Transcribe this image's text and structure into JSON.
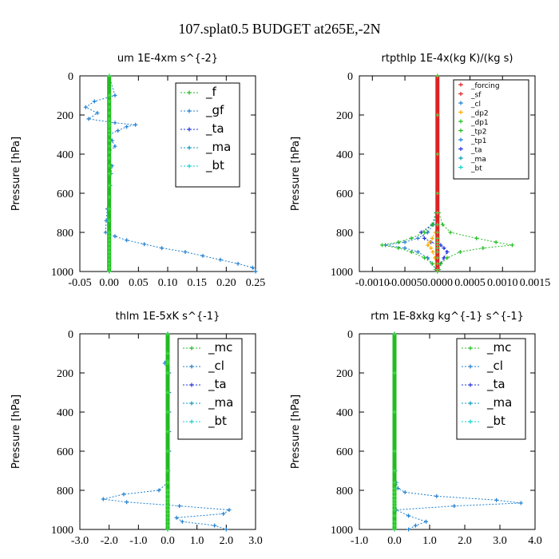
{
  "suptitle": "107.splat0.5  BUDGET at265E,-2N",
  "series_styles": {
    "_f": {
      "color": "#22bb22"
    },
    "_gf": {
      "color": "#1f7fd0"
    },
    "_ta": {
      "color": "#2233dd"
    },
    "_ma": {
      "color": "#1199bb"
    },
    "_bt": {
      "color": "#11d0d0"
    },
    "_forcing": {
      "color": "#dd2222"
    },
    "_sf": {
      "color": "#dd2222"
    },
    "_cl": {
      "color": "#1f7fd0"
    },
    "_dp2": {
      "color": "#ffaa00"
    },
    "_dp1": {
      "color": "#22bb22"
    },
    "_tp2": {
      "color": "#22bb22"
    },
    "_tp1": {
      "color": "#1f7fd0"
    },
    "_mc": {
      "color": "#22bb22"
    }
  },
  "chart_data": [
    {
      "type": "line",
      "title": "um   1E-4xm s^{-2}",
      "ylabel": "Pressure [hPa]",
      "xlim": [
        -0.05,
        0.25
      ],
      "ylim": [
        1000,
        0
      ],
      "xticks": [
        -0.05,
        0.0,
        0.05,
        0.1,
        0.15,
        0.2,
        0.25
      ],
      "xtick_labels": [
        "-0.05",
        "0.00",
        "0.05",
        "0.10",
        "0.15",
        "0.20",
        "0.25"
      ],
      "yticks": [
        0,
        200,
        400,
        600,
        800,
        1000
      ],
      "legend": "top-right",
      "legend_entries": [
        "_f",
        "_gf",
        "_ta",
        "_ma",
        "_bt"
      ],
      "pressure": [
        0,
        100,
        130,
        160,
        190,
        220,
        240,
        250,
        260,
        280,
        300,
        330,
        360,
        390,
        420,
        460,
        500,
        560,
        620,
        680,
        740,
        800,
        820,
        840,
        860,
        880,
        900,
        920,
        940,
        960,
        980,
        1000
      ],
      "series": [
        {
          "name": "_f",
          "values": [
            0,
            0,
            0,
            0,
            0,
            0,
            0,
            0,
            0,
            0,
            0,
            0,
            0,
            0,
            0,
            0,
            0,
            0,
            0,
            0,
            0,
            0,
            0,
            0,
            0,
            0,
            0,
            0,
            0,
            0,
            0,
            0
          ]
        },
        {
          "name": "_gf",
          "values": [
            0.0,
            0.01,
            -0.025,
            -0.04,
            -0.02,
            -0.035,
            0.01,
            0.045,
            0.03,
            0.015,
            0.0,
            0.005,
            0.01,
            0.0,
            0.0,
            0.005,
            0.003,
            0.002,
            0.0,
            -0.003,
            -0.005,
            -0.006,
            0.01,
            0.03,
            0.06,
            0.09,
            0.13,
            0.16,
            0.19,
            0.22,
            0.245,
            0.25
          ]
        },
        {
          "name": "_ta",
          "values": [
            0,
            0,
            0,
            0,
            0,
            0,
            0,
            0,
            0,
            0,
            0,
            0,
            0,
            0,
            0,
            0,
            0,
            0,
            0,
            0,
            0,
            0,
            0,
            0,
            0,
            0,
            0,
            0,
            0,
            0,
            0,
            0
          ]
        },
        {
          "name": "_ma",
          "values": [
            0,
            0,
            0,
            0,
            0,
            0,
            0,
            0,
            0,
            0,
            0,
            0,
            0,
            0,
            0,
            0,
            0,
            0,
            0,
            0,
            0,
            0,
            0,
            0,
            0,
            0,
            0,
            0,
            0,
            0,
            0,
            0
          ]
        },
        {
          "name": "_bt",
          "values": [
            0,
            0,
            0,
            0,
            0,
            0,
            0,
            0,
            0,
            0,
            0,
            0,
            0,
            0,
            0,
            0,
            0,
            0,
            0,
            0,
            0,
            0,
            0,
            0,
            0,
            0,
            0,
            0,
            0,
            0,
            0,
            0
          ]
        }
      ]
    },
    {
      "type": "line",
      "title": "rtpthlp   1E-4x(kg K)/(kg s)",
      "ylabel": "Pressure [hPa]",
      "xlim": [
        -0.0012,
        0.0015
      ],
      "ylim": [
        1000,
        0
      ],
      "xticks": [
        -0.001,
        -0.0005,
        0.0,
        0.0005,
        0.001,
        0.0015
      ],
      "xtick_labels": [
        "-0.0010",
        "-0.0005",
        "0.0000",
        "0.0005",
        "0.0010",
        "0.0015"
      ],
      "yticks": [
        0,
        200,
        400,
        600,
        800,
        1000
      ],
      "legend": "top-right",
      "legend_entries": [
        "_forcing",
        "_sf",
        "_cl",
        "_dp2",
        "_dp1",
        "_tp2",
        "_tp1",
        "_ta",
        "_ma",
        "_bt"
      ],
      "pressure": [
        0,
        200,
        400,
        600,
        700,
        760,
        800,
        830,
        850,
        865,
        880,
        900,
        930,
        960,
        990,
        1000
      ],
      "series": [
        {
          "name": "_forcing",
          "values": [
            0,
            0,
            0,
            0,
            0,
            0,
            0,
            0,
            0,
            0,
            0,
            0,
            0,
            0,
            0,
            0
          ]
        },
        {
          "name": "_sf",
          "values": [
            0,
            0,
            0,
            0,
            0,
            0,
            0,
            0,
            0,
            0,
            0,
            0,
            0,
            0,
            0,
            0
          ]
        },
        {
          "name": "_cl",
          "values": [
            0,
            0,
            0,
            0,
            0,
            0,
            0,
            0,
            0,
            0,
            0,
            0,
            0,
            0,
            0,
            0
          ]
        },
        {
          "name": "_dp2",
          "values": [
            0,
            0,
            0,
            0,
            0,
            0,
            -3e-05,
            -8e-05,
            -0.00012,
            -0.00015,
            -0.0001,
            -7e-05,
            -4e-05,
            -2e-05,
            -1e-05,
            0
          ]
        },
        {
          "name": "_dp1",
          "values": [
            0,
            0,
            0,
            0,
            2e-05,
            8e-05,
            0.0002,
            0.0006,
            0.0009,
            0.00115,
            0.0007,
            0.00035,
            0.00015,
            5e-05,
            2e-05,
            0
          ]
        },
        {
          "name": "_tp2",
          "values": [
            0,
            0,
            0,
            0,
            -2e-05,
            -8e-05,
            -0.0002,
            -0.0004,
            -0.0006,
            -0.00085,
            -0.0006,
            -0.0004,
            -0.0002,
            -8e-05,
            -2e-05,
            0
          ]
        },
        {
          "name": "_tp1",
          "values": [
            0,
            0,
            0,
            0,
            -2e-05,
            -6e-05,
            -0.00015,
            -0.0003,
            -0.0005,
            -0.0008,
            -0.0005,
            -0.0003,
            -0.00015,
            -8e-05,
            -3e-05,
            0
          ]
        },
        {
          "name": "_ta",
          "values": [
            0,
            0,
            0,
            0,
            -2e-05,
            -8e-05,
            -0.00025,
            -0.0002,
            -0.0001,
            5e-05,
            0.0001,
            0.00015,
            0.0001,
            5e-05,
            2e-05,
            0
          ]
        },
        {
          "name": "_ma",
          "values": [
            0,
            0,
            0,
            0,
            0,
            0,
            0,
            0,
            0,
            0,
            0,
            0,
            0,
            0,
            0,
            0
          ]
        },
        {
          "name": "_bt",
          "values": [
            0,
            0,
            0,
            0,
            0,
            0,
            0,
            0,
            0,
            0,
            0,
            0,
            0,
            0,
            0,
            0
          ]
        }
      ]
    },
    {
      "type": "line",
      "title": "thlm   1E-5xK s^{-1}",
      "ylabel": "Pressure [hPa]",
      "xlim": [
        -3.0,
        3.0
      ],
      "ylim": [
        1000,
        0
      ],
      "xticks": [
        -3.0,
        -2.0,
        -1.0,
        0.0,
        1.0,
        2.0,
        3.0
      ],
      "xtick_labels": [
        "-3.0",
        "-2.0",
        "-1.0",
        "0.0",
        "1.0",
        "2.0",
        "3.0"
      ],
      "yticks": [
        0,
        200,
        400,
        600,
        800,
        1000
      ],
      "legend": "top-right",
      "legend_entries": [
        "_mc",
        "_cl",
        "_ta",
        "_ma",
        "_bt"
      ],
      "pressure": [
        0,
        100,
        140,
        150,
        200,
        300,
        400,
        500,
        600,
        700,
        760,
        800,
        820,
        845,
        860,
        880,
        900,
        920,
        940,
        960,
        980,
        1000
      ],
      "series": [
        {
          "name": "_mc",
          "values": [
            0,
            0,
            0,
            0,
            0,
            0,
            0,
            0,
            0,
            0,
            0,
            0,
            0,
            0,
            0,
            0,
            0,
            0,
            0,
            0,
            0,
            0
          ]
        },
        {
          "name": "_cl",
          "values": [
            0.0,
            0.0,
            -0.05,
            -0.1,
            0.05,
            0.05,
            0.05,
            0.05,
            0.05,
            0.02,
            0.0,
            -0.3,
            -1.5,
            -2.2,
            -1.4,
            0.4,
            2.1,
            1.9,
            0.3,
            0.5,
            1.6,
            2.0
          ]
        },
        {
          "name": "_ta",
          "values": [
            0,
            0,
            0,
            0,
            0,
            0,
            0,
            0,
            0,
            0,
            0,
            0,
            0,
            0,
            0,
            0,
            0,
            0,
            0,
            0,
            0,
            0
          ]
        },
        {
          "name": "_ma",
          "values": [
            0,
            0,
            0,
            0,
            0,
            0,
            0,
            0,
            0,
            0,
            0,
            0,
            0,
            0,
            0,
            0,
            0,
            0,
            0,
            0,
            0,
            0
          ]
        },
        {
          "name": "_bt",
          "values": [
            0,
            0,
            0,
            0,
            0,
            0,
            0,
            0,
            0,
            0,
            0,
            0,
            0,
            0,
            0,
            0,
            0,
            0,
            0,
            0,
            0,
            0
          ]
        }
      ]
    },
    {
      "type": "line",
      "title": "rtm   1E-8xkg kg^{-1} s^{-1}",
      "ylabel": "Pressure [hPa]",
      "xlim": [
        -1.0,
        4.0
      ],
      "ylim": [
        1000,
        0
      ],
      "xticks": [
        -1.0,
        0.0,
        1.0,
        2.0,
        3.0,
        4.0
      ],
      "xtick_labels": [
        "-1.0",
        "0.0",
        "1.0",
        "2.0",
        "3.0",
        "4.0"
      ],
      "yticks": [
        0,
        200,
        400,
        600,
        800,
        1000
      ],
      "legend": "top-right",
      "legend_entries": [
        "_mc",
        "_cl",
        "_ta",
        "_ma",
        "_bt"
      ],
      "pressure": [
        0,
        200,
        400,
        600,
        700,
        760,
        790,
        810,
        830,
        850,
        865,
        880,
        900,
        930,
        960,
        980,
        1000
      ],
      "series": [
        {
          "name": "_mc",
          "values": [
            0,
            0,
            0,
            0,
            0,
            0,
            0,
            0,
            0,
            0,
            0,
            0,
            0,
            0,
            0,
            0,
            0
          ]
        },
        {
          "name": "_cl",
          "values": [
            0.0,
            0.0,
            0.0,
            0.0,
            0.02,
            0.05,
            0.1,
            0.3,
            1.2,
            2.9,
            3.6,
            1.7,
            0.05,
            0.4,
            0.9,
            0.6,
            0.4
          ]
        },
        {
          "name": "_ta",
          "values": [
            0,
            0,
            0,
            0,
            0,
            0,
            0,
            0,
            0,
            0,
            0,
            0,
            0,
            0,
            0,
            0,
            0
          ]
        },
        {
          "name": "_ma",
          "values": [
            0,
            0,
            0,
            0,
            0,
            0,
            0,
            0,
            0,
            0,
            0,
            0,
            0,
            0,
            0,
            0,
            0
          ]
        },
        {
          "name": "_bt",
          "values": [
            0,
            0,
            0,
            0,
            0,
            0,
            0,
            0,
            0,
            0,
            0,
            0,
            0,
            0,
            0,
            0,
            0
          ]
        }
      ]
    }
  ]
}
